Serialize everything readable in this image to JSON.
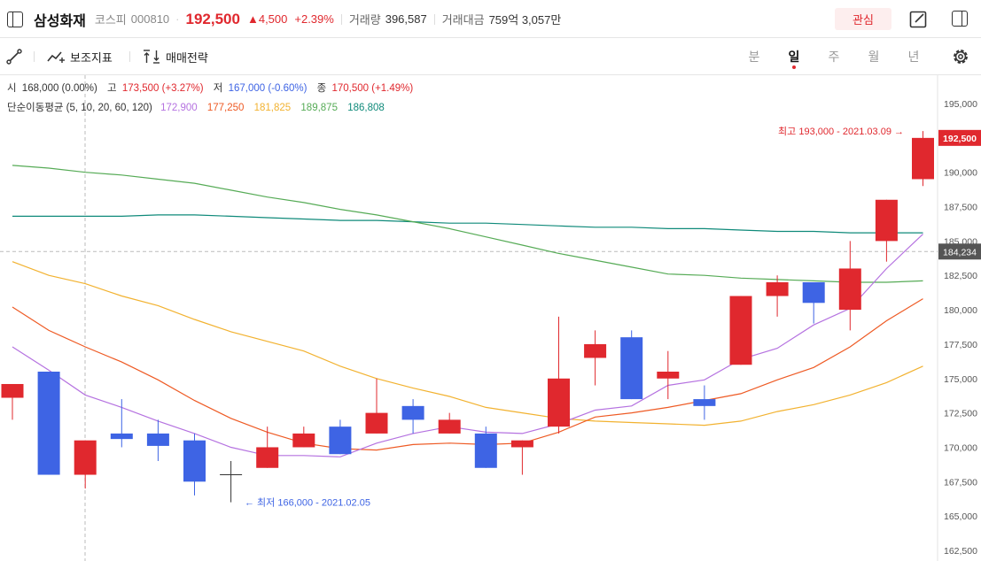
{
  "header": {
    "name": "삼성화재",
    "market": "코스피",
    "code": "000810",
    "price": "192,500",
    "change": "▲4,500",
    "pct": "+2.39%",
    "volume_label": "거래량",
    "volume": "396,587",
    "amount_label": "거래대금",
    "amount": "759억 3,057만",
    "fav_label": "관심"
  },
  "toolbar": {
    "indicators_label": "보조지표",
    "strategy_label": "매매전략",
    "periods": [
      "분",
      "일",
      "주",
      "월",
      "년"
    ],
    "active_period": "일"
  },
  "ohlc_info": {
    "open_label": "시",
    "open": "168,000 (0.00%)",
    "high_label": "고",
    "high": "173,500 (+3.27%)",
    "low_label": "저",
    "low": "167,000 (-0.60%)",
    "close_label": "종",
    "close": "170,500 (+1.49%)"
  },
  "ma_info": {
    "label": "단순이동평균 (5, 10, 20, 60, 120)",
    "ma5": "172,900",
    "ma10": "177,250",
    "ma20": "181,825",
    "ma60": "189,875",
    "ma120": "186,808"
  },
  "colors": {
    "up": "#e0282e",
    "down": "#3e64e4",
    "ma5": "#b572e0",
    "ma10": "#ee5a24",
    "ma20": "#f2b230",
    "ma60": "#56ab56",
    "ma120": "#0f8a7a"
  },
  "chart_data": {
    "type": "candlestick",
    "y_ticks": [
      162500,
      165000,
      167500,
      170000,
      172500,
      175000,
      177500,
      180000,
      182500,
      185000,
      187500,
      190000,
      192500,
      195000
    ],
    "y_tick_labels": [
      "162,500",
      "165,000",
      "167,500",
      "170,000",
      "172,500",
      "175,000",
      "177,500",
      "180,000",
      "182,500",
      "185,000",
      "187,500",
      "190,000",
      "192,500",
      "195,000"
    ],
    "ylim": [
      162000,
      196500
    ],
    "candles": [
      {
        "o": 173600,
        "h": 174600,
        "l": 172000,
        "c": 174600
      },
      {
        "o": 175500,
        "h": 175500,
        "l": 168000,
        "c": 168000
      },
      {
        "o": 168000,
        "h": 170500,
        "l": 167000,
        "c": 170500
      },
      {
        "o": 171000,
        "h": 173500,
        "l": 170000,
        "c": 170600
      },
      {
        "o": 171000,
        "h": 172000,
        "l": 169000,
        "c": 170100
      },
      {
        "o": 170500,
        "h": 171000,
        "l": 166500,
        "c": 167500
      },
      {
        "o": 168000,
        "h": 169000,
        "l": 166000,
        "c": 168000
      },
      {
        "o": 168500,
        "h": 171500,
        "l": 168500,
        "c": 170000
      },
      {
        "o": 170000,
        "h": 171500,
        "l": 170000,
        "c": 171000
      },
      {
        "o": 171500,
        "h": 172000,
        "l": 169500,
        "c": 169500
      },
      {
        "o": 171000,
        "h": 175000,
        "l": 171000,
        "c": 172500
      },
      {
        "o": 173000,
        "h": 173500,
        "l": 171000,
        "c": 172000
      },
      {
        "o": 171000,
        "h": 172500,
        "l": 171000,
        "c": 172000
      },
      {
        "o": 171000,
        "h": 171500,
        "l": 168500,
        "c": 168500
      },
      {
        "o": 170000,
        "h": 170500,
        "l": 168000,
        "c": 170500
      },
      {
        "o": 171500,
        "h": 179500,
        "l": 171000,
        "c": 175000
      },
      {
        "o": 176500,
        "h": 178500,
        "l": 174500,
        "c": 177500
      },
      {
        "o": 178000,
        "h": 178500,
        "l": 173500,
        "c": 173500
      },
      {
        "o": 175000,
        "h": 177000,
        "l": 173500,
        "c": 175500
      },
      {
        "o": 173500,
        "h": 174500,
        "l": 172000,
        "c": 173000
      },
      {
        "o": 176000,
        "h": 181000,
        "l": 176000,
        "c": 181000
      },
      {
        "o": 181000,
        "h": 182500,
        "l": 179500,
        "c": 182000
      },
      {
        "o": 182000,
        "h": 182000,
        "l": 179000,
        "c": 180500
      },
      {
        "o": 180000,
        "h": 185000,
        "l": 178500,
        "c": 183000
      },
      {
        "o": 185000,
        "h": 188000,
        "l": 183500,
        "c": 188000
      },
      {
        "o": 189500,
        "h": 193000,
        "l": 189000,
        "c": 192500
      }
    ],
    "ma5": [
      177300,
      175600,
      173800,
      172900,
      171900,
      171000,
      170000,
      169400,
      169400,
      169300,
      170300,
      171000,
      171500,
      171100,
      171000,
      171700,
      172700,
      173000,
      174500,
      174900,
      176400,
      177200,
      178900,
      180100,
      183000,
      185500
    ],
    "ma10": [
      180200,
      178500,
      177300,
      176200,
      174900,
      173400,
      172100,
      171100,
      170300,
      169900,
      169800,
      170200,
      170300,
      170200,
      170300,
      171100,
      172200,
      172500,
      172900,
      173400,
      173900,
      174900,
      175800,
      177300,
      179200,
      180800
    ],
    "ma20": [
      183500,
      182500,
      181900,
      181000,
      180300,
      179300,
      178400,
      177700,
      177000,
      175900,
      175000,
      174300,
      173700,
      172900,
      172500,
      172100,
      171900,
      171800,
      171700,
      171600,
      171900,
      172600,
      173100,
      173800,
      174700,
      175900
    ],
    "ma60": [
      190500,
      190300,
      190000,
      189800,
      189500,
      189200,
      188700,
      188200,
      187800,
      187300,
      186900,
      186400,
      185900,
      185300,
      184700,
      184100,
      183600,
      183100,
      182600,
      182500,
      182300,
      182200,
      182100,
      182000,
      182000,
      182100
    ],
    "ma120": [
      186800,
      186800,
      186800,
      186800,
      186900,
      186900,
      186800,
      186700,
      186600,
      186500,
      186500,
      186400,
      186300,
      186300,
      186200,
      186100,
      186000,
      186000,
      185900,
      185900,
      185800,
      185700,
      185700,
      185600,
      185600,
      185600
    ],
    "max_label": "최고 193,000 - 2021.03.09",
    "min_label": "최저 166,000 - 2021.02.05",
    "last_price_label": "192,500",
    "crosshair_label": "184,234",
    "crosshair_value": 184234
  }
}
